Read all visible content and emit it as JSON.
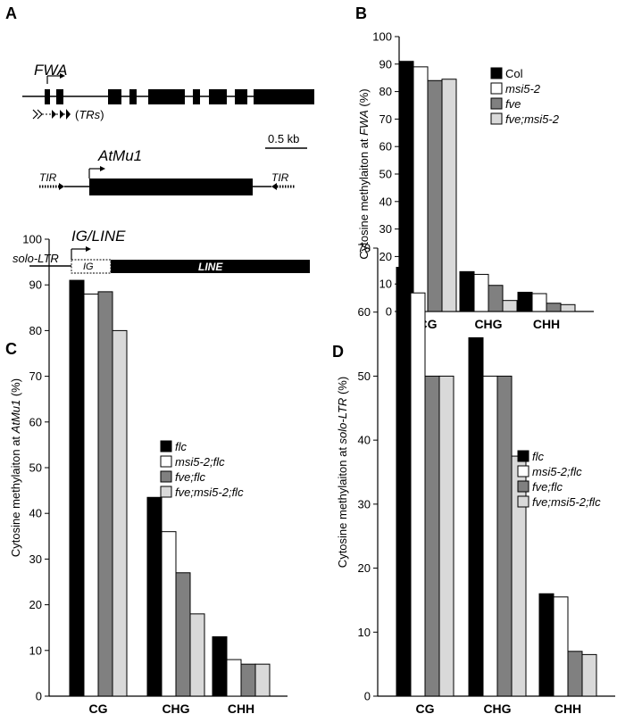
{
  "panels": {
    "a": {
      "letter": "A"
    },
    "b": {
      "letter": "B"
    },
    "c": {
      "letter": "C"
    },
    "d": {
      "letter": "D"
    }
  },
  "diagram": {
    "fwa_label": "FWA",
    "trs_label": "TRs",
    "scale_label": "0.5 kb",
    "atmu1_label": "AtMu1",
    "tir_left": "TIR",
    "tir_right": "TIR",
    "ig_line_label": "IG/LINE",
    "solo_ltr_label": "solo-LTR",
    "ig_box_label": "IG",
    "line_box_label": "LINE"
  },
  "colors": [
    "#000000",
    "#ffffff",
    "#808080",
    "#d9d9d9"
  ],
  "chart_data": [
    {
      "type": "bar",
      "panel": "B",
      "ylabel_prefix": "Cytosine methylaiton at ",
      "ylabel_italic": "FWA",
      "ylabel_suffix": " (%)",
      "ylim": [
        0,
        100
      ],
      "yticks": [
        0,
        10,
        20,
        30,
        40,
        50,
        60,
        70,
        80,
        90,
        100
      ],
      "categories": [
        "CG",
        "CHG",
        "CHH"
      ],
      "legend_position": "right",
      "series": [
        {
          "name": "Col",
          "italic": false,
          "values": [
            91,
            14.5,
            7
          ]
        },
        {
          "name": "msi5-2",
          "italic": true,
          "values": [
            89,
            13.5,
            6.5
          ]
        },
        {
          "name": "fve",
          "italic": true,
          "values": [
            84,
            9.5,
            3
          ]
        },
        {
          "name": "fve;msi5-2",
          "italic": true,
          "values": [
            84.5,
            4,
            2.5
          ]
        }
      ]
    },
    {
      "type": "bar",
      "panel": "C",
      "ylabel_prefix": "Cytosine methylaiton at ",
      "ylabel_italic": "AtMu1",
      "ylabel_suffix": " (%)",
      "ylim": [
        0,
        100
      ],
      "yticks": [
        0,
        10,
        20,
        30,
        40,
        50,
        60,
        70,
        80,
        90,
        100
      ],
      "categories": [
        "CG",
        "CHG",
        "CHH"
      ],
      "legend_position": "right",
      "series": [
        {
          "name": "flc",
          "italic": true,
          "values": [
            91,
            43.5,
            13
          ]
        },
        {
          "name": "msi5-2;flc",
          "italic": true,
          "values": [
            88,
            36,
            8
          ]
        },
        {
          "name": "fve;flc",
          "italic": true,
          "values": [
            88.5,
            27,
            7
          ]
        },
        {
          "name": "fve;msi5-2;flc",
          "italic": true,
          "values": [
            80,
            18,
            7
          ]
        }
      ]
    },
    {
      "type": "bar",
      "panel": "D",
      "ylabel_prefix": "Cytosine methylaiton at ",
      "ylabel_italic": "solo-LTR",
      "ylabel_suffix": " (%)",
      "ylim": [
        0,
        70
      ],
      "yticks": [
        0,
        10,
        20,
        30,
        40,
        50,
        60,
        70
      ],
      "categories": [
        "CG",
        "CHG",
        "CHH"
      ],
      "legend_position": "right",
      "series": [
        {
          "name": "flc",
          "italic": true,
          "values": [
            67,
            56,
            16
          ]
        },
        {
          "name": "msi5-2;flc",
          "italic": true,
          "values": [
            63,
            50,
            15.5
          ]
        },
        {
          "name": "fve;flc",
          "italic": true,
          "values": [
            50,
            50,
            7
          ]
        },
        {
          "name": "fve;msi5-2;flc",
          "italic": true,
          "values": [
            50,
            37.5,
            6.5
          ]
        }
      ]
    }
  ]
}
